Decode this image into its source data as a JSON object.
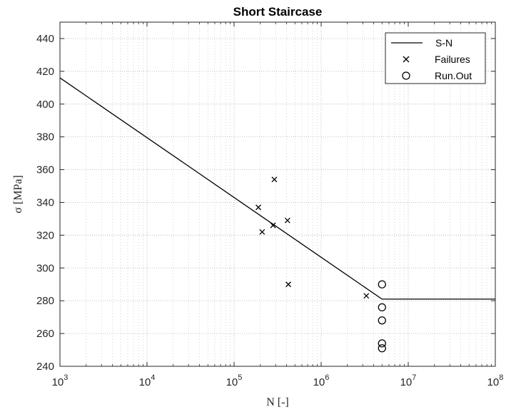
{
  "chart_data": {
    "type": "scatter",
    "title": "Short Staircase",
    "xlabel": "N [-]",
    "ylabel": "σ [MPa]",
    "x_scale": "log",
    "xlim": [
      1000,
      100000000
    ],
    "ylim": [
      240,
      450
    ],
    "x_ticks": [
      {
        "base": "10",
        "exp": "3",
        "value": 1000
      },
      {
        "base": "10",
        "exp": "4",
        "value": 10000
      },
      {
        "base": "10",
        "exp": "5",
        "value": 100000
      },
      {
        "base": "10",
        "exp": "6",
        "value": 1000000
      },
      {
        "base": "10",
        "exp": "7",
        "value": 10000000
      },
      {
        "base": "10",
        "exp": "8",
        "value": 100000000
      }
    ],
    "y_ticks": [
      240,
      260,
      280,
      300,
      320,
      340,
      360,
      380,
      400,
      420,
      440
    ],
    "grid": true,
    "minor_grid": true,
    "legend_position": "top-right",
    "legend": [
      "S-N",
      "Failures",
      "Run.Out"
    ],
    "series": [
      {
        "name": "S-N",
        "type": "line",
        "x": [
          1000,
          5000000,
          100000000
        ],
        "y": [
          416,
          281,
          281
        ]
      },
      {
        "name": "Failures",
        "type": "scatter",
        "marker": "x",
        "x": [
          290000,
          190000,
          210000,
          280000,
          410000,
          420000,
          3300000
        ],
        "y": [
          354,
          337,
          322,
          326,
          329,
          290,
          283
        ]
      },
      {
        "name": "Run.Out",
        "type": "scatter",
        "marker": "o",
        "x": [
          5000000,
          5000000,
          5000000,
          5000000,
          5000000
        ],
        "y": [
          290,
          276,
          268,
          254,
          251
        ]
      }
    ]
  }
}
